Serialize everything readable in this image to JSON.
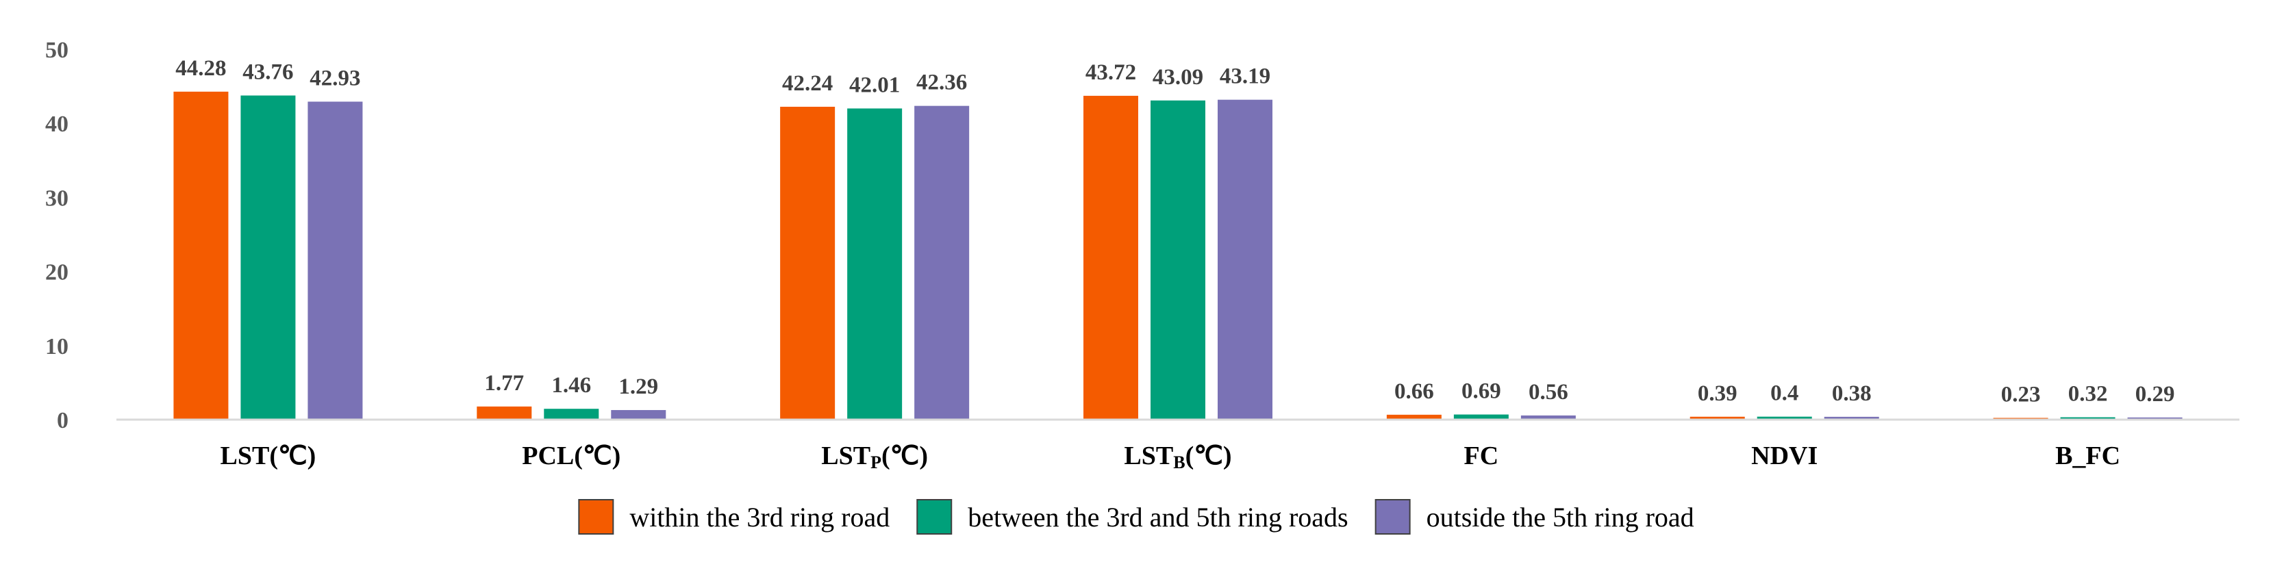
{
  "chart_data": {
    "type": "bar",
    "categories": [
      {
        "main": "LST",
        "sub": "",
        "unit": "(℃)"
      },
      {
        "main": "PCL",
        "sub": "",
        "unit": "(℃)"
      },
      {
        "main": "LST",
        "sub": "P",
        "unit": "(℃)"
      },
      {
        "main": "LST",
        "sub": "B",
        "unit": "(℃)"
      },
      {
        "main": "FC",
        "sub": "",
        "unit": ""
      },
      {
        "main": "NDVI",
        "sub": "",
        "unit": ""
      },
      {
        "main": "B_FC",
        "sub": "",
        "unit": ""
      }
    ],
    "series": [
      {
        "name": "within the 3rd ring road",
        "color": "#F45B00",
        "values": [
          44.28,
          1.77,
          42.24,
          43.72,
          0.66,
          0.39,
          0.23
        ],
        "labels": [
          "44.28",
          "1.77",
          "42.24",
          "43.72",
          "0.66",
          "0.39",
          "0.23"
        ]
      },
      {
        "name": "between the 3rd and 5th ring roads",
        "color": "#00A07A",
        "values": [
          43.76,
          1.46,
          42.01,
          43.09,
          0.69,
          0.4,
          0.32
        ],
        "labels": [
          "43.76",
          "1.46",
          "42.01",
          "43.09",
          "0.69",
          "0.4",
          "0.32"
        ]
      },
      {
        "name": "outside the 5th ring road",
        "color": "#7A72B5",
        "values": [
          42.93,
          1.29,
          42.36,
          43.19,
          0.56,
          0.38,
          0.29
        ],
        "labels": [
          "42.93",
          "1.29",
          "42.36",
          "43.19",
          "0.56",
          "0.38",
          "0.29"
        ]
      }
    ],
    "yticks": [
      "0",
      "10",
      "20",
      "30",
      "40",
      "50"
    ],
    "ylim": [
      0,
      50
    ],
    "grid": false,
    "legend_position": "bottom"
  }
}
